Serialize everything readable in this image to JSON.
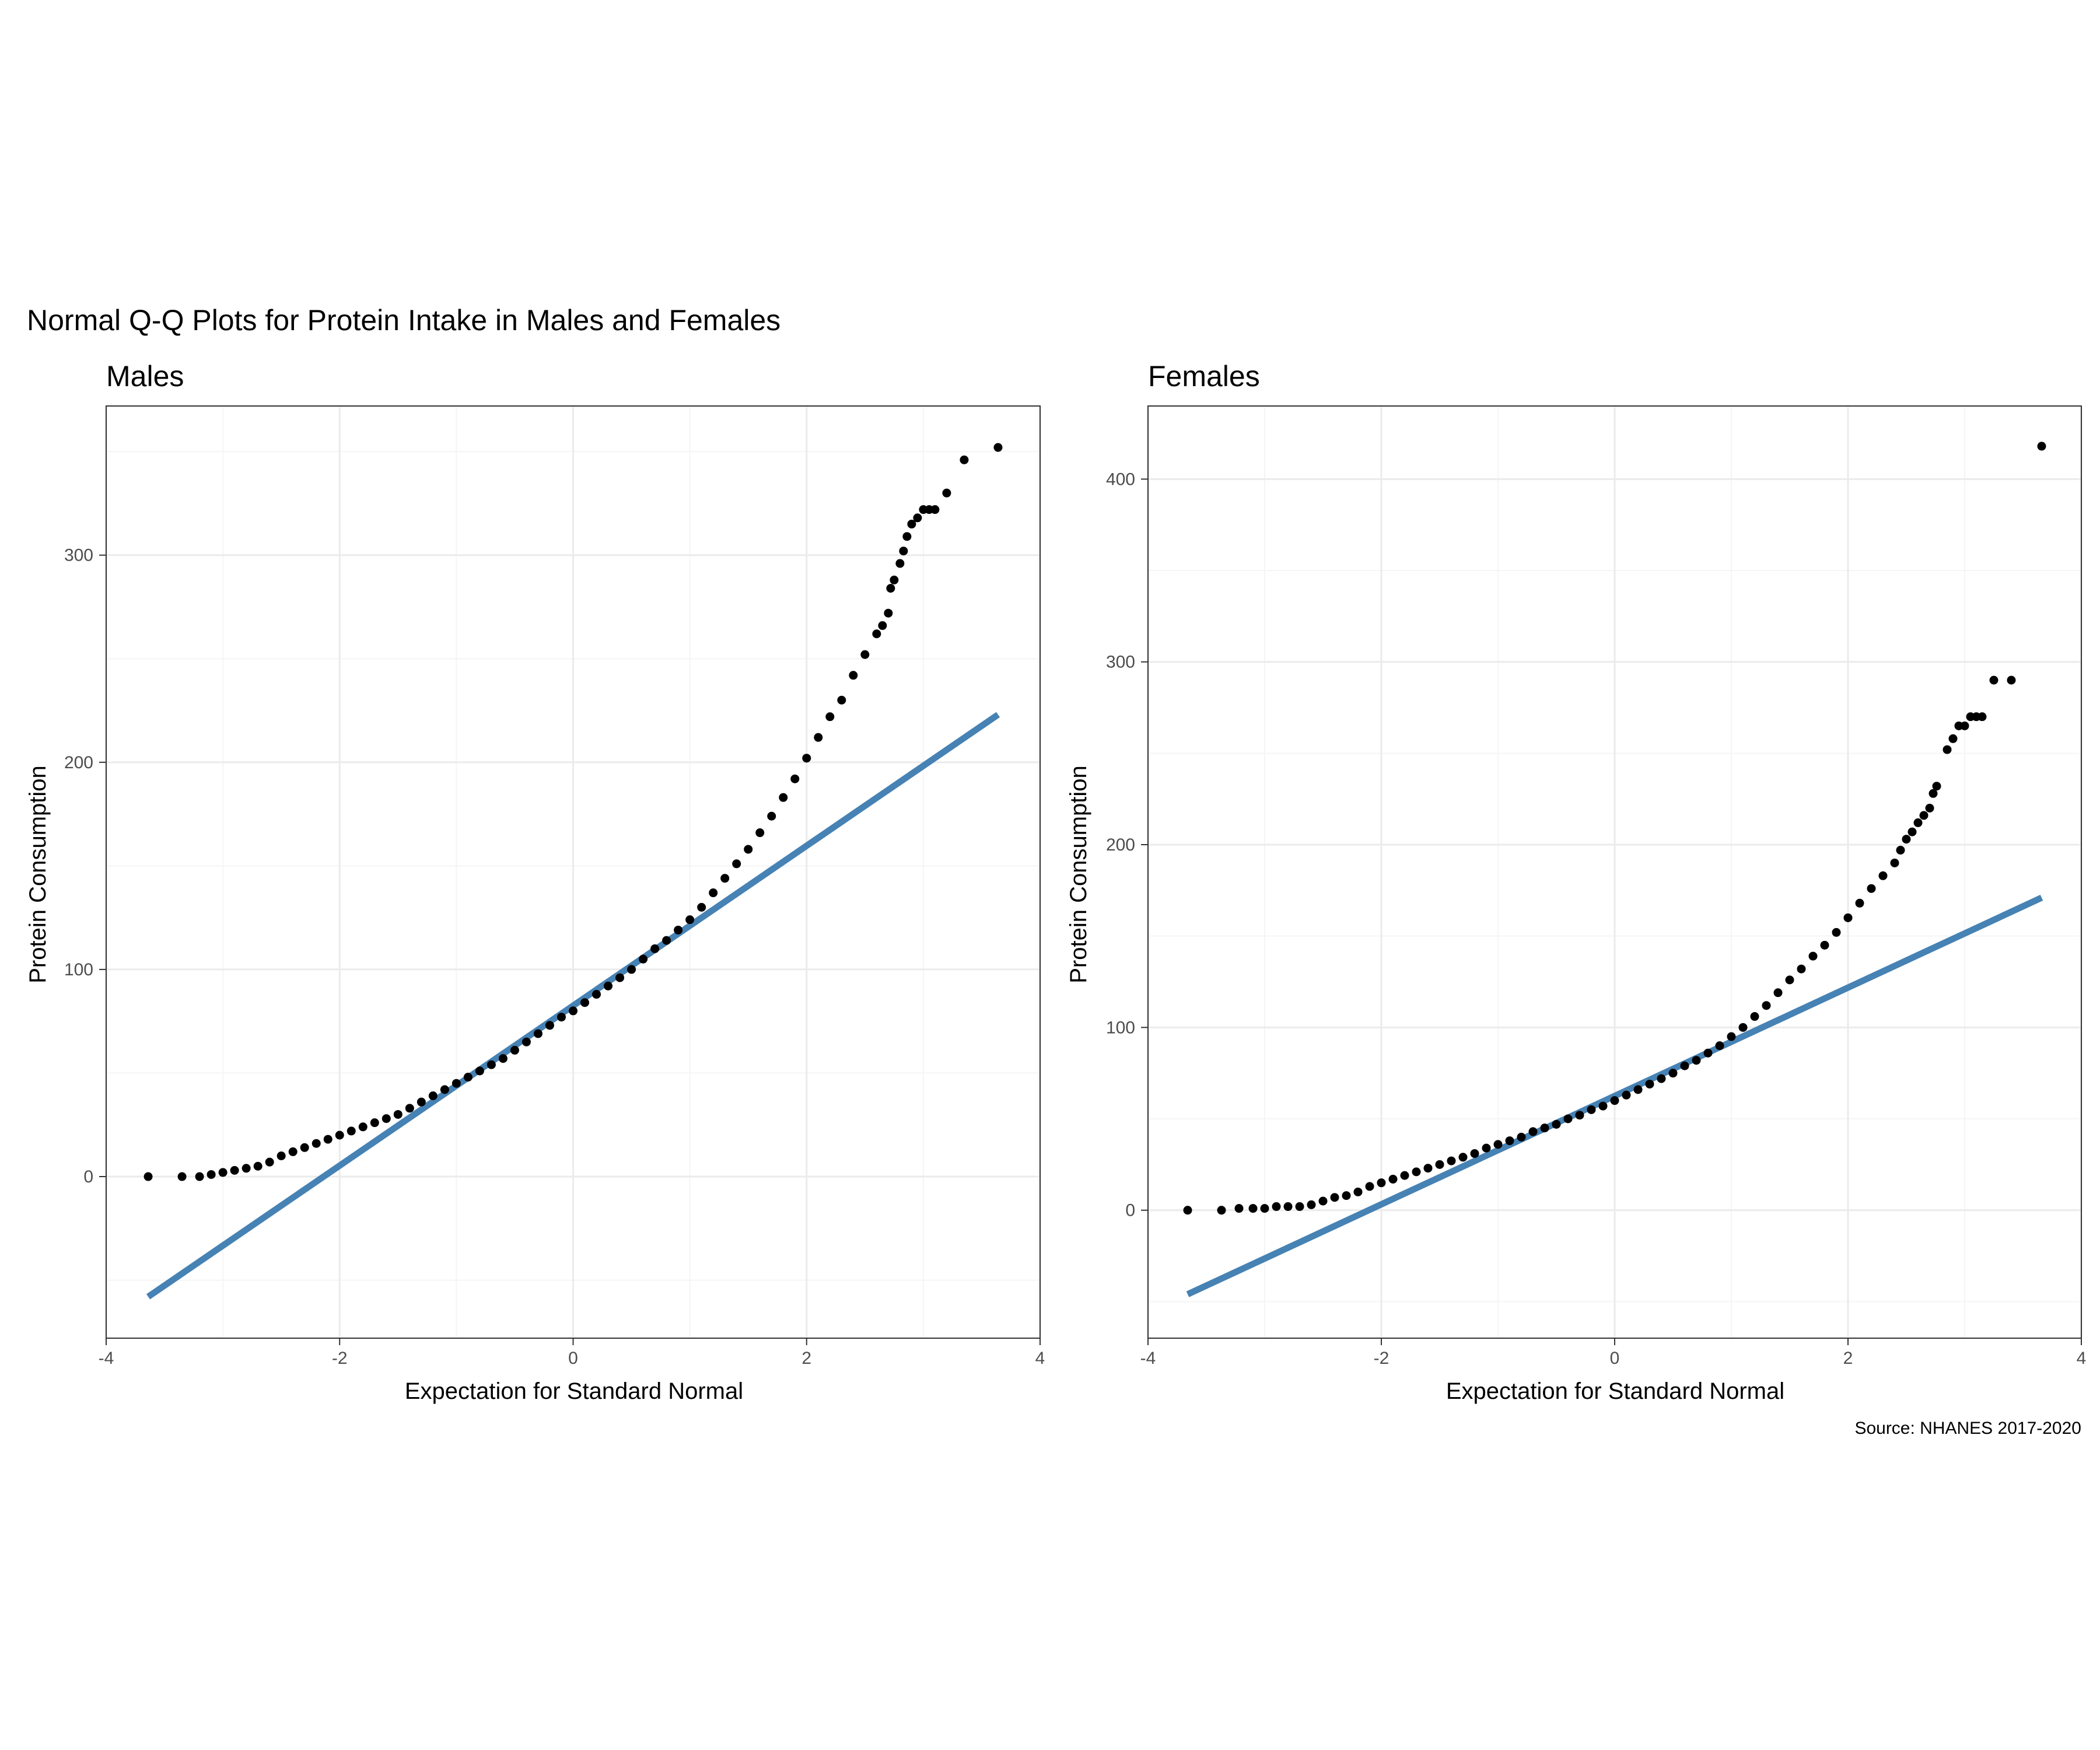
{
  "overall_title": "Normal Q-Q Plots for Protein Intake in Males and Females",
  "caption": "Source: NHANES 2017-2020",
  "colors": {
    "points": "#000000",
    "line": "#4682b4",
    "grid_major": "#ebebeb",
    "grid_minor": "#f5f5f5",
    "panel_border": "#333333",
    "tick_text": "#4d4d4d"
  },
  "chart_data": [
    {
      "type": "scatter",
      "title": "Males",
      "xlabel": "Expectation for Standard Normal",
      "ylabel": "Protein Consumption",
      "xlim": [
        -4,
        4
      ],
      "ylim": [
        -78,
        372
      ],
      "xticks": [
        -4,
        -2,
        0,
        2,
        4
      ],
      "yticks": [
        0,
        100,
        200,
        300
      ],
      "grid": true,
      "reference_line": {
        "x": [
          -3.64,
          3.64
        ],
        "y": [
          -58,
          223
        ]
      },
      "points": [
        [
          -3.64,
          0
        ],
        [
          -3.35,
          0
        ],
        [
          -3.2,
          0
        ],
        [
          -3.1,
          1
        ],
        [
          -3.0,
          2
        ],
        [
          -2.9,
          3
        ],
        [
          -2.8,
          4
        ],
        [
          -2.7,
          5
        ],
        [
          -2.6,
          7
        ],
        [
          -2.5,
          10
        ],
        [
          -2.4,
          12
        ],
        [
          -2.3,
          14
        ],
        [
          -2.2,
          16
        ],
        [
          -2.1,
          18
        ],
        [
          -2.0,
          20
        ],
        [
          -1.9,
          22
        ],
        [
          -1.8,
          24
        ],
        [
          -1.7,
          26
        ],
        [
          -1.6,
          28
        ],
        [
          -1.5,
          30
        ],
        [
          -1.4,
          33
        ],
        [
          -1.3,
          36
        ],
        [
          -1.2,
          39
        ],
        [
          -1.1,
          42
        ],
        [
          -1.0,
          45
        ],
        [
          -0.9,
          48
        ],
        [
          -0.8,
          51
        ],
        [
          -0.7,
          54
        ],
        [
          -0.6,
          57
        ],
        [
          -0.5,
          61
        ],
        [
          -0.4,
          65
        ],
        [
          -0.3,
          69
        ],
        [
          -0.2,
          73
        ],
        [
          -0.1,
          77
        ],
        [
          0.0,
          80
        ],
        [
          0.1,
          84
        ],
        [
          0.2,
          88
        ],
        [
          0.3,
          92
        ],
        [
          0.4,
          96
        ],
        [
          0.5,
          100
        ],
        [
          0.6,
          105
        ],
        [
          0.7,
          110
        ],
        [
          0.8,
          114
        ],
        [
          0.9,
          119
        ],
        [
          1.0,
          124
        ],
        [
          1.1,
          130
        ],
        [
          1.2,
          137
        ],
        [
          1.3,
          144
        ],
        [
          1.4,
          151
        ],
        [
          1.5,
          158
        ],
        [
          1.6,
          166
        ],
        [
          1.7,
          174
        ],
        [
          1.8,
          183
        ],
        [
          1.9,
          192
        ],
        [
          2.0,
          202
        ],
        [
          2.1,
          212
        ],
        [
          2.2,
          222
        ],
        [
          2.3,
          230
        ],
        [
          2.4,
          242
        ],
        [
          2.5,
          252
        ],
        [
          2.6,
          262
        ],
        [
          2.65,
          266
        ],
        [
          2.7,
          272
        ],
        [
          2.72,
          284
        ],
        [
          2.75,
          288
        ],
        [
          2.8,
          296
        ],
        [
          2.83,
          302
        ],
        [
          2.86,
          309
        ],
        [
          2.9,
          315
        ],
        [
          2.95,
          318
        ],
        [
          3.0,
          322
        ],
        [
          3.05,
          322
        ],
        [
          3.1,
          322
        ],
        [
          3.2,
          330
        ],
        [
          3.35,
          346
        ],
        [
          3.64,
          352
        ]
      ]
    },
    {
      "type": "scatter",
      "title": "Females",
      "xlabel": "Expectation for Standard Normal",
      "ylabel": "Protein Consumption",
      "xlim": [
        -4,
        4
      ],
      "ylim": [
        -70,
        440
      ],
      "xticks": [
        -4,
        -2,
        0,
        2,
        4
      ],
      "yticks": [
        0,
        100,
        200,
        300,
        400
      ],
      "grid": true,
      "reference_line": {
        "x": [
          -3.66,
          3.66
        ],
        "y": [
          -46,
          171
        ]
      },
      "points": [
        [
          -3.66,
          0
        ],
        [
          -3.37,
          0
        ],
        [
          -3.22,
          1
        ],
        [
          -3.1,
          1
        ],
        [
          -3.0,
          1
        ],
        [
          -2.9,
          2
        ],
        [
          -2.8,
          2
        ],
        [
          -2.7,
          2
        ],
        [
          -2.6,
          3
        ],
        [
          -2.5,
          5
        ],
        [
          -2.4,
          7
        ],
        [
          -2.3,
          8
        ],
        [
          -2.2,
          10
        ],
        [
          -2.1,
          13
        ],
        [
          -2.0,
          15
        ],
        [
          -1.9,
          17
        ],
        [
          -1.8,
          19
        ],
        [
          -1.7,
          21
        ],
        [
          -1.6,
          23
        ],
        [
          -1.5,
          25
        ],
        [
          -1.4,
          27
        ],
        [
          -1.3,
          29
        ],
        [
          -1.2,
          31
        ],
        [
          -1.1,
          34
        ],
        [
          -1.0,
          36
        ],
        [
          -0.9,
          38
        ],
        [
          -0.8,
          40
        ],
        [
          -0.7,
          43
        ],
        [
          -0.6,
          45
        ],
        [
          -0.5,
          47
        ],
        [
          -0.4,
          50
        ],
        [
          -0.3,
          52
        ],
        [
          -0.2,
          55
        ],
        [
          -0.1,
          57
        ],
        [
          0.0,
          60
        ],
        [
          0.1,
          63
        ],
        [
          0.2,
          66
        ],
        [
          0.3,
          69
        ],
        [
          0.4,
          72
        ],
        [
          0.5,
          75
        ],
        [
          0.6,
          79
        ],
        [
          0.7,
          82
        ],
        [
          0.8,
          86
        ],
        [
          0.9,
          90
        ],
        [
          1.0,
          95
        ],
        [
          1.1,
          100
        ],
        [
          1.2,
          106
        ],
        [
          1.3,
          112
        ],
        [
          1.4,
          119
        ],
        [
          1.5,
          126
        ],
        [
          1.6,
          132
        ],
        [
          1.7,
          139
        ],
        [
          1.8,
          145
        ],
        [
          1.9,
          152
        ],
        [
          2.0,
          160
        ],
        [
          2.1,
          168
        ],
        [
          2.2,
          176
        ],
        [
          2.3,
          183
        ],
        [
          2.4,
          190
        ],
        [
          2.45,
          197
        ],
        [
          2.5,
          203
        ],
        [
          2.55,
          207
        ],
        [
          2.6,
          212
        ],
        [
          2.65,
          216
        ],
        [
          2.7,
          220
        ],
        [
          2.73,
          228
        ],
        [
          2.76,
          232
        ],
        [
          2.85,
          252
        ],
        [
          2.9,
          258
        ],
        [
          2.95,
          265
        ],
        [
          3.0,
          265
        ],
        [
          3.05,
          270
        ],
        [
          3.1,
          270
        ],
        [
          3.15,
          270
        ],
        [
          3.25,
          290
        ],
        [
          3.4,
          290
        ],
        [
          3.66,
          418
        ]
      ]
    }
  ]
}
